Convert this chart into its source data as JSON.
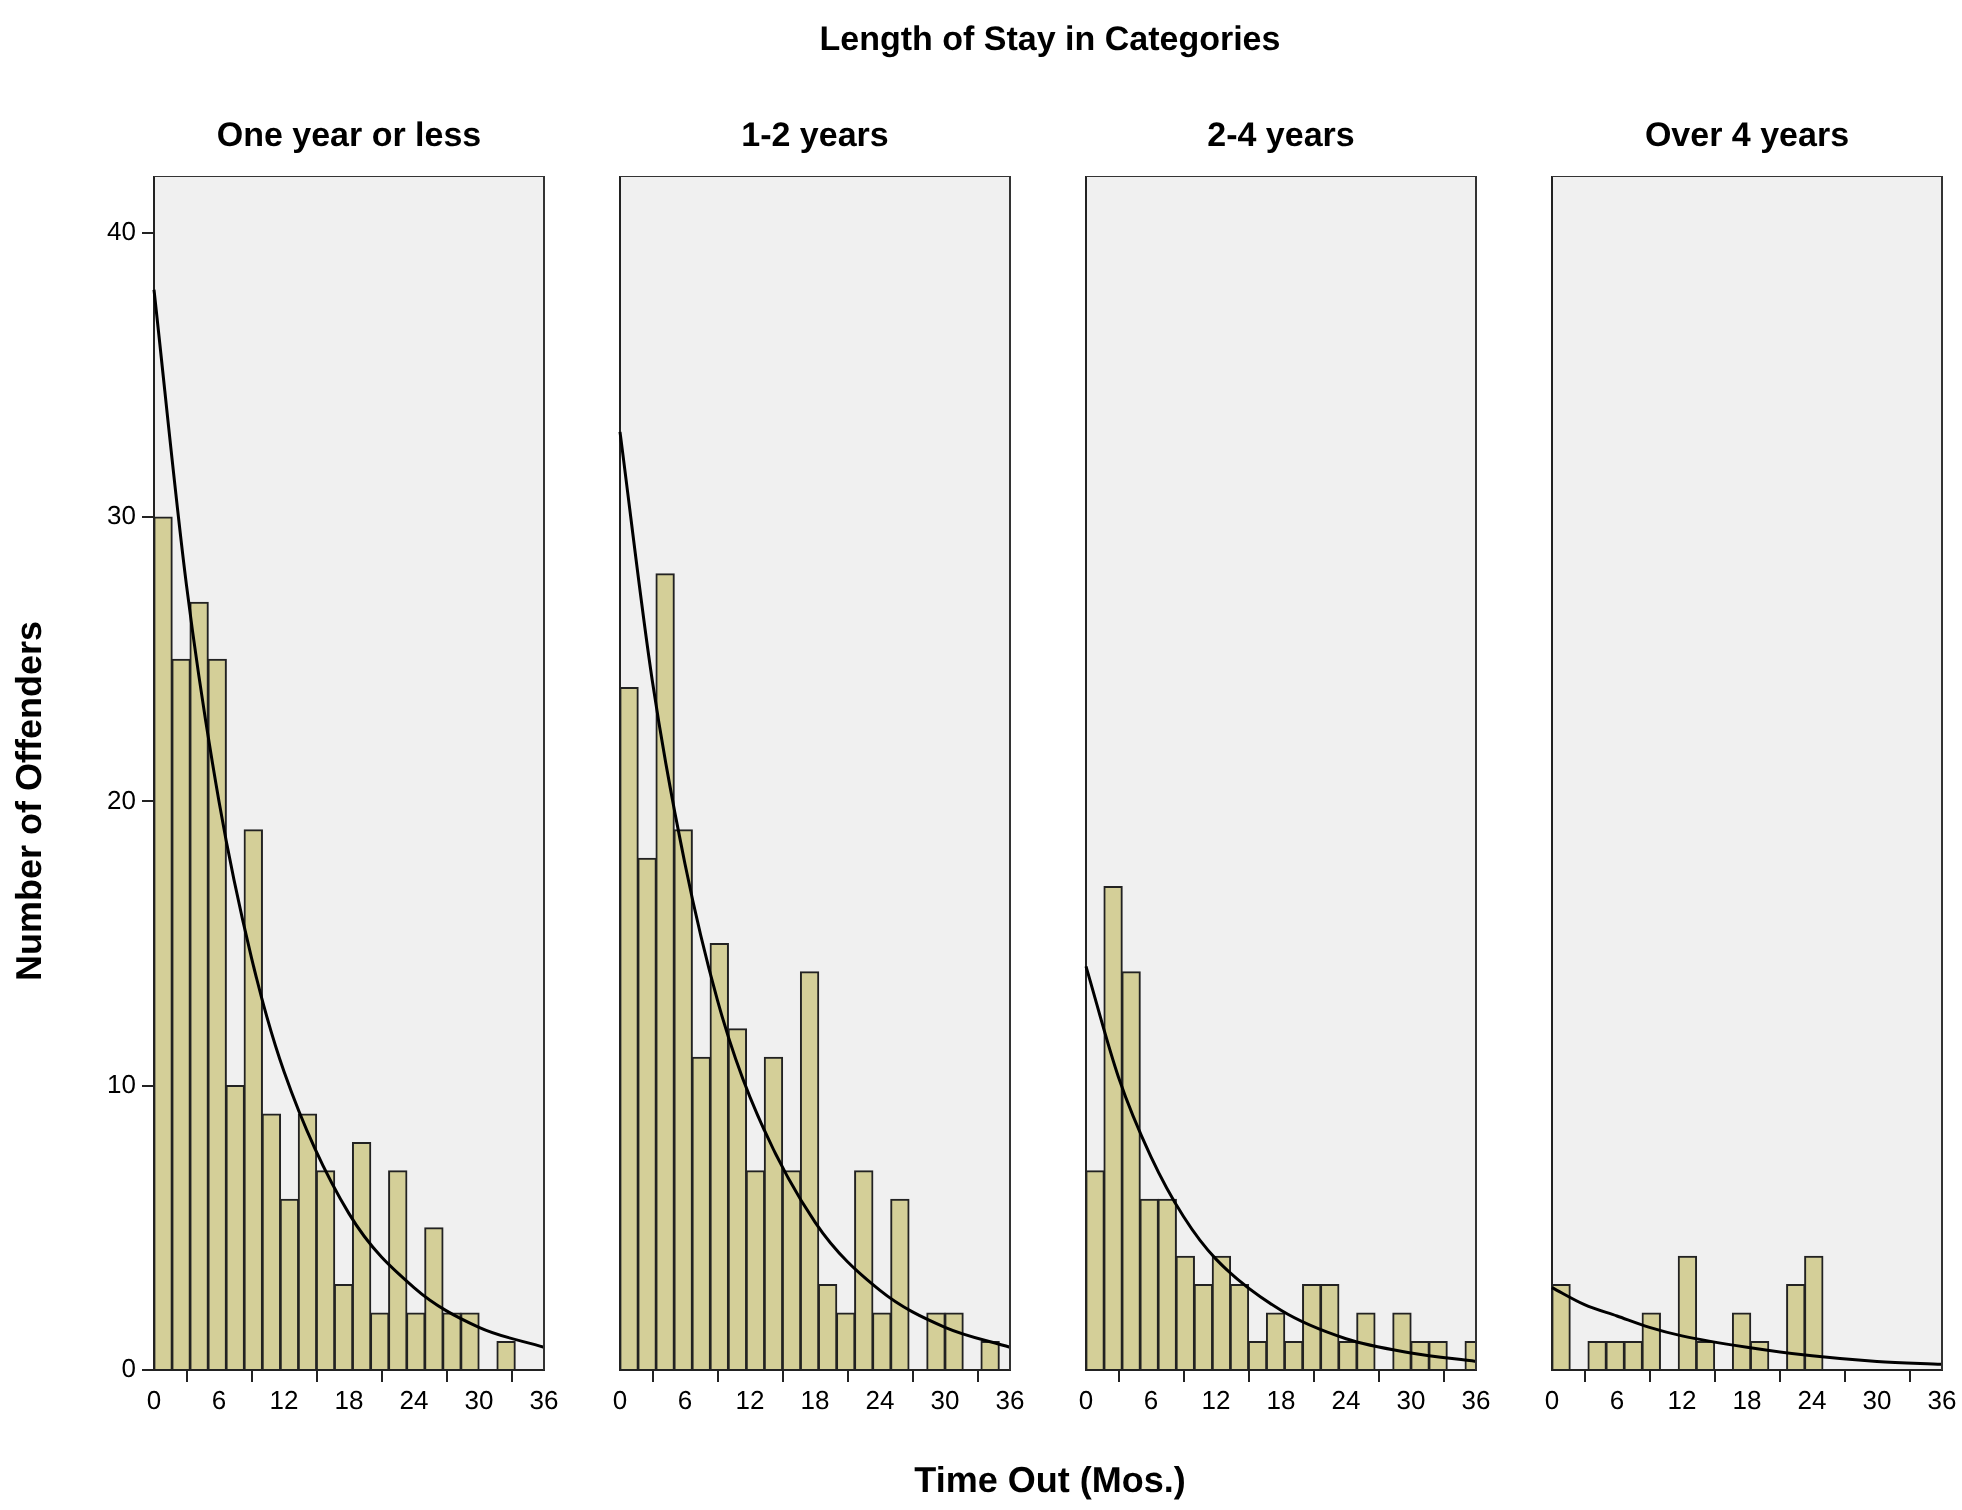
{
  "chart_data": [
    {
      "type": "histogram",
      "title": "One year or less",
      "annotations": [
        "Length of Stay in Categories"
      ],
      "ylabel": "Number of Offenders",
      "bins": [
        0,
        1.67,
        3.33,
        5,
        6.67,
        8.33,
        10,
        11.67,
        13.33,
        15,
        16.67,
        18.33,
        20,
        21.67,
        23.33,
        25,
        26.67,
        28.33,
        30,
        31.67,
        33.33,
        35,
        36.67
      ],
      "xlim": [
        0,
        36
      ],
      "xticks": [
        0,
        6,
        12,
        18,
        24,
        30,
        36
      ],
      "ylim": [
        0,
        42
      ],
      "yticks": [
        0,
        10,
        20,
        30,
        40
      ],
      "grid": false,
      "series": [
        {
          "type": "histogram",
          "color": "#d4cf98",
          "values": [
            30,
            25,
            27,
            25,
            10,
            19,
            9,
            6,
            9,
            7,
            3,
            8,
            2,
            7,
            2,
            5,
            2,
            2,
            0,
            1,
            0,
            0
          ]
        },
        {
          "type": "line",
          "color": "#000000",
          "x": [
            0,
            3,
            6,
            9,
            12,
            18,
            24,
            30,
            36
          ],
          "values": [
            38,
            27.6,
            20,
            14.5,
            10.5,
            5.5,
            2.9,
            1.5,
            0.8
          ]
        }
      ]
    },
    {
      "type": "histogram",
      "title": "1-2 years",
      "xlabel": "Time Out (Mos.)",
      "bins": [
        0,
        1.67,
        3.33,
        5,
        6.67,
        8.33,
        10,
        11.67,
        13.33,
        15,
        16.67,
        18.33,
        20,
        21.67,
        23.33,
        25,
        26.67,
        28.33,
        30,
        31.67,
        33.33,
        35,
        36.67
      ],
      "xlim": [
        0,
        36
      ],
      "xticks": [
        0,
        6,
        12,
        18,
        24,
        30,
        36
      ],
      "ylim": [
        0,
        42
      ],
      "yticks": [
        0,
        10,
        20,
        30,
        40
      ],
      "grid": false,
      "tick_labels": "x",
      "series": [
        {
          "type": "histogram",
          "color": "#d4cf98",
          "values": [
            24,
            18,
            28,
            19,
            11,
            15,
            12,
            7,
            11,
            7,
            14,
            3,
            2,
            7,
            2,
            6,
            0,
            2,
            2,
            0,
            1,
            0
          ]
        },
        {
          "type": "line",
          "color": "#000000",
          "x": [
            0,
            3,
            6,
            9,
            12,
            18,
            24,
            30,
            36
          ],
          "values": [
            33,
            24.2,
            17.8,
            13,
            9.6,
            5.2,
            2.8,
            1.5,
            0.8
          ]
        }
      ]
    },
    {
      "type": "histogram",
      "title": "2-4 years",
      "bins": [
        0,
        1.67,
        3.33,
        5,
        6.67,
        8.33,
        10,
        11.67,
        13.33,
        15,
        16.67,
        18.33,
        20,
        21.67,
        23.33,
        25,
        26.67,
        28.33,
        30,
        31.67,
        33.33,
        35,
        36.67
      ],
      "xlim": [
        0,
        36
      ],
      "xticks": [
        0,
        6,
        12,
        18,
        24,
        30,
        36
      ],
      "ylim": [
        0,
        42
      ],
      "yticks": [
        0,
        10,
        20,
        30,
        40
      ],
      "grid": false,
      "tick_labels": "x",
      "series": [
        {
          "type": "histogram",
          "color": "#d4cf98",
          "values": [
            7,
            17,
            14,
            6,
            6,
            4,
            3,
            4,
            3,
            1,
            2,
            1,
            3,
            3,
            1,
            2,
            0,
            2,
            1,
            1,
            0,
            1
          ]
        },
        {
          "type": "line",
          "color": "#000000",
          "x": [
            0,
            3,
            6,
            9,
            12,
            18,
            24,
            30,
            36
          ],
          "values": [
            14.2,
            10.3,
            7.5,
            5.4,
            3.9,
            2.1,
            1.1,
            0.6,
            0.3
          ]
        }
      ]
    },
    {
      "type": "histogram",
      "title": "Over 4 years",
      "bins": [
        0,
        1.67,
        3.33,
        5,
        6.67,
        8.33,
        10,
        11.67,
        13.33,
        15,
        16.67,
        18.33,
        20,
        21.67,
        23.33,
        25,
        26.67,
        28.33,
        30,
        31.67,
        33.33,
        35,
        36.67
      ],
      "xlim": [
        0,
        36
      ],
      "xticks": [
        0,
        6,
        12,
        18,
        24,
        30,
        36
      ],
      "ylim": [
        0,
        42
      ],
      "yticks": [
        0,
        10,
        20,
        30,
        40
      ],
      "grid": false,
      "tick_labels": "x",
      "series": [
        {
          "type": "histogram",
          "color": "#d4cf98",
          "values": [
            3,
            0,
            1,
            1,
            1,
            2,
            0,
            4,
            1,
            0,
            2,
            1,
            0,
            3,
            4,
            0,
            0,
            0,
            0,
            0,
            0,
            0
          ]
        },
        {
          "type": "line",
          "color": "#000000",
          "x": [
            0,
            3,
            6,
            9,
            12,
            18,
            24,
            30,
            36
          ],
          "values": [
            2.9,
            2.3,
            1.9,
            1.5,
            1.2,
            0.8,
            0.5,
            0.3,
            0.2
          ]
        }
      ]
    }
  ]
}
